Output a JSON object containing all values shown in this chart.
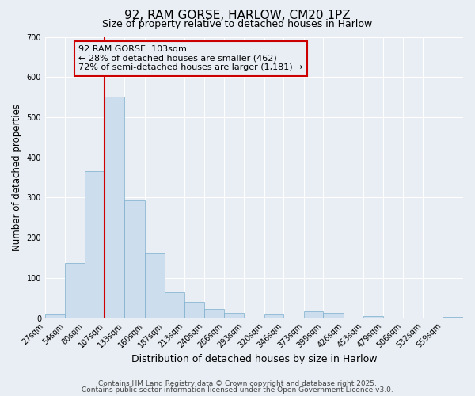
{
  "title": "92, RAM GORSE, HARLOW, CM20 1PZ",
  "subtitle": "Size of property relative to detached houses in Harlow",
  "xlabel": "Distribution of detached houses by size in Harlow",
  "ylabel": "Number of detached properties",
  "bar_labels": [
    "27sqm",
    "54sqm",
    "80sqm",
    "107sqm",
    "133sqm",
    "160sqm",
    "187sqm",
    "213sqm",
    "240sqm",
    "266sqm",
    "293sqm",
    "320sqm",
    "346sqm",
    "373sqm",
    "399sqm",
    "426sqm",
    "453sqm",
    "479sqm",
    "506sqm",
    "532sqm",
    "559sqm"
  ],
  "bar_values": [
    10,
    138,
    365,
    551,
    293,
    160,
    65,
    40,
    23,
    13,
    0,
    10,
    0,
    18,
    13,
    0,
    5,
    0,
    0,
    0,
    3
  ],
  "bar_color": "#ccdded",
  "bar_edgecolor": "#7aadcc",
  "bin_edges": [
    27,
    54,
    80,
    107,
    133,
    160,
    187,
    213,
    240,
    266,
    293,
    320,
    346,
    373,
    399,
    426,
    453,
    479,
    506,
    532,
    559,
    586
  ],
  "vline_x": 107,
  "vline_color": "#cc0000",
  "annotation_text": "92 RAM GORSE: 103sqm\n← 28% of detached houses are smaller (462)\n72% of semi-detached houses are larger (1,181) →",
  "annotation_box_edgecolor": "#cc0000",
  "annotation_fontsize": 8,
  "ylim": [
    0,
    700
  ],
  "yticks": [
    0,
    100,
    200,
    300,
    400,
    500,
    600,
    700
  ],
  "background_color": "#e8eef4",
  "plot_bg_color": "#e8eef4",
  "grid_color": "#ffffff",
  "footer_line1": "Contains HM Land Registry data © Crown copyright and database right 2025.",
  "footer_line2": "Contains public sector information licensed under the Open Government Licence v3.0.",
  "title_fontsize": 11,
  "subtitle_fontsize": 9,
  "xlabel_fontsize": 9,
  "ylabel_fontsize": 8.5,
  "tick_fontsize": 7,
  "footer_fontsize": 6.5
}
